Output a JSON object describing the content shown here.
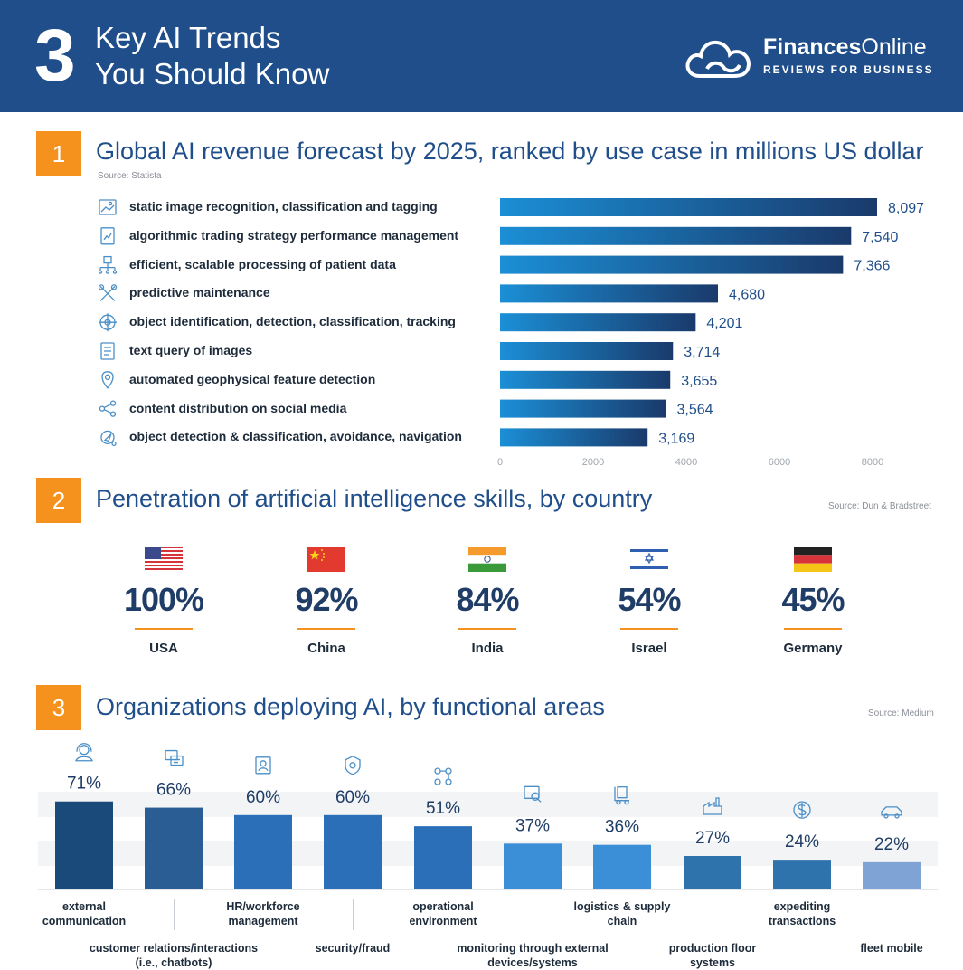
{
  "header": {
    "number": "3",
    "title_line1": "Key AI Trends",
    "title_line2": "You Should Know",
    "logo_bold": "Finances",
    "logo_rest": "Online",
    "logo_tagline": "REVIEWS FOR BUSINESS"
  },
  "section1": {
    "number": "1",
    "title": "Global AI revenue forecast by 2025, ranked by use case in millions US dollar",
    "source": "Source: Statista"
  },
  "section2": {
    "number": "2",
    "title": "Penetration of artificial intelligence skills, by country",
    "source": "Source: Dun & Bradstreet",
    "countries": [
      {
        "name": "USA",
        "value_label": "100%",
        "flag": "usa-flag"
      },
      {
        "name": "China",
        "value_label": "92%",
        "flag": "china-flag"
      },
      {
        "name": "India",
        "value_label": "84%",
        "flag": "india-flag"
      },
      {
        "name": "Israel",
        "value_label": "54%",
        "flag": "israel-flag"
      },
      {
        "name": "Germany",
        "value_label": "45%",
        "flag": "germany-flag"
      }
    ]
  },
  "section3": {
    "number": "3",
    "title": "Organizations deploying AI, by functional areas",
    "source": "Source: Medium"
  },
  "chart_data": [
    {
      "type": "bar",
      "orientation": "horizontal",
      "title": "Global AI revenue forecast by 2025, ranked by use case in millions US dollar",
      "categories": [
        "static image recognition, classification and tagging",
        "algorithmic trading strategy performance management",
        "efficient, scalable processing of patient data",
        "predictive maintenance",
        "object identification, detection, classification, tracking",
        "text query of images",
        "automated geophysical feature detection",
        "content distribution on social media",
        "object detection & classification, avoidance, navigation"
      ],
      "icons": [
        "image-icon",
        "trading-icon",
        "patient-data-icon",
        "tools-icon",
        "target-icon",
        "document-icon",
        "location-icon",
        "share-icon",
        "navigation-icon"
      ],
      "values": [
        8097,
        7540,
        7366,
        4680,
        4201,
        3714,
        3655,
        3564,
        3169
      ],
      "value_labels": [
        "8,097",
        "7,540",
        "7,366",
        "4,680",
        "4,201",
        "3,714",
        "3,655",
        "3,564",
        "3,169"
      ],
      "xticks": [
        "0",
        "2000",
        "4000",
        "6000",
        "8000"
      ],
      "xlim": [
        0,
        8000
      ],
      "colors": {
        "start": "#1b8fd6",
        "end": "#1a3a6b"
      }
    },
    {
      "type": "bar",
      "title": "Organizations deploying AI, by functional areas",
      "categories": [
        "external communication",
        "customer relations/interactions (i.e., chatbots)",
        "HR/workforce management",
        "security/fraud",
        "operational environment",
        "monitoring through external devices/systems",
        "logistics & supply chain",
        "production floor systems",
        "expediting transactions",
        "fleet mobile"
      ],
      "label_lines": [
        [
          "external",
          "communication"
        ],
        [
          "customer relations/interactions",
          "(i.e., chatbots)"
        ],
        [
          "HR/workforce",
          "management"
        ],
        [
          "security/fraud"
        ],
        [
          "operational",
          "environment"
        ],
        [
          "monitoring through external",
          "devices/systems"
        ],
        [
          "logistics & supply",
          "chain"
        ],
        [
          "production floor",
          "systems"
        ],
        [
          "expediting",
          "transactions"
        ],
        [
          "fleet mobile"
        ]
      ],
      "icons": [
        "headset-icon",
        "chat-icon",
        "hr-icon",
        "shield-icon",
        "flow-icon",
        "monitor-icon",
        "logistics-icon",
        "factory-icon",
        "dollar-icon",
        "car-icon"
      ],
      "values": [
        71,
        66,
        60,
        60,
        51,
        37,
        36,
        27,
        24,
        22
      ],
      "value_labels": [
        "71%",
        "66%",
        "60%",
        "60%",
        "51%",
        "37%",
        "36%",
        "27%",
        "24%",
        "22%"
      ],
      "colors": [
        "#1a4a7a",
        "#2a5d94",
        "#2a6fb8",
        "#2a6fb8",
        "#2a6fb8",
        "#3b8fd6",
        "#3b8fd6",
        "#2f73ad",
        "#2f73ad",
        "#7fa3d4"
      ]
    }
  ]
}
